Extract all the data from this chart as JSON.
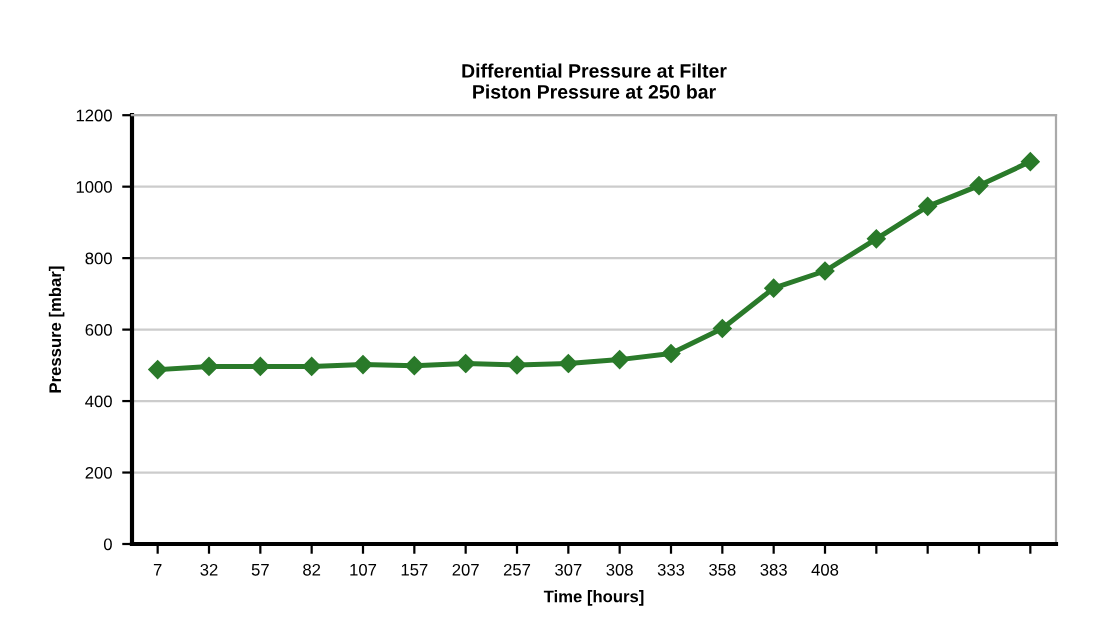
{
  "chart_data": {
    "type": "line",
    "title": "Differential Pressure at Filter\nPiston Pressure at 250 bar",
    "xlabel": "Time [hours]",
    "ylabel": "Pressure [mbar]",
    "categories": [
      "7",
      "32",
      "57",
      "82",
      "107",
      "157",
      "207",
      "257",
      "307",
      "308",
      "333",
      "358",
      "383",
      "408",
      null,
      null,
      null,
      null
    ],
    "series": [
      {
        "color": "#2a7a2a",
        "values": [
          488,
          497,
          497,
          497,
          502,
          499,
          505,
          501,
          505,
          516,
          533,
          603,
          716,
          764,
          854,
          945,
          1003,
          1070
        ]
      }
    ],
    "ylim": [
      0,
      1200
    ],
    "yticks": [
      0,
      200,
      400,
      600,
      800,
      1000,
      1200
    ],
    "grid": "y",
    "marker": "diamond",
    "line_style": "solid"
  }
}
